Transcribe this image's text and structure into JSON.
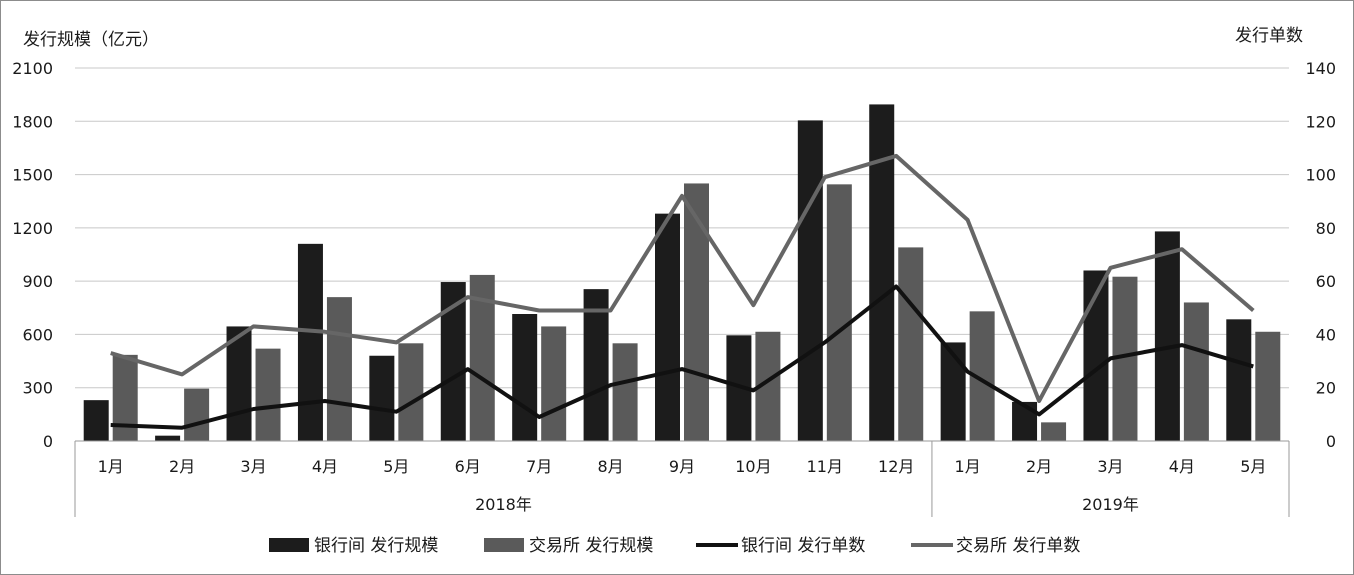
{
  "chart_data": {
    "type": "bar",
    "y_left_label": "发行规模（亿元）",
    "y_right_label": "发行单数",
    "y_left_lim": [
      0,
      2100
    ],
    "y_right_lim": [
      0,
      140
    ],
    "y_left_ticks": [
      "0",
      "300",
      "600",
      "900",
      "1200",
      "1500",
      "1800",
      "2100"
    ],
    "y_right_ticks": [
      "0",
      "20",
      "40",
      "60",
      "80",
      "100",
      "120",
      "140"
    ],
    "grid": true,
    "legend_position": "bottom",
    "categories": [
      "1月",
      "2月",
      "3月",
      "4月",
      "5月",
      "6月",
      "7月",
      "8月",
      "9月",
      "10月",
      "11月",
      "12月",
      "1月",
      "2月",
      "3月",
      "4月",
      "5月"
    ],
    "groups": [
      {
        "label": "2018年",
        "count": 12
      },
      {
        "label": "2019年",
        "count": 5
      }
    ],
    "series": [
      {
        "name": "银行间 发行规模",
        "kind": "bar",
        "axis": "left",
        "color": "#1c1c1c",
        "values": [
          230,
          30,
          645,
          1110,
          480,
          895,
          715,
          855,
          1280,
          595,
          1805,
          1895,
          555,
          220,
          960,
          1180,
          685
        ]
      },
      {
        "name": "交易所 发行规模",
        "kind": "bar",
        "axis": "left",
        "color": "#5a5a5a",
        "values": [
          485,
          295,
          520,
          810,
          550,
          935,
          645,
          550,
          1450,
          615,
          1445,
          1090,
          730,
          105,
          925,
          780,
          615
        ]
      },
      {
        "name": "银行间 发行单数",
        "kind": "line",
        "axis": "right",
        "color": "#111111",
        "values": [
          6,
          5,
          12,
          15,
          11,
          27,
          9,
          21,
          27,
          19,
          37,
          58,
          26,
          10,
          31,
          36,
          28
        ]
      },
      {
        "name": "交易所 发行单数",
        "kind": "line",
        "axis": "right",
        "color": "#666666",
        "values": [
          33,
          25,
          43,
          41,
          37,
          54,
          49,
          49,
          92,
          51,
          99,
          107,
          83,
          15,
          65,
          72,
          49
        ]
      }
    ]
  }
}
